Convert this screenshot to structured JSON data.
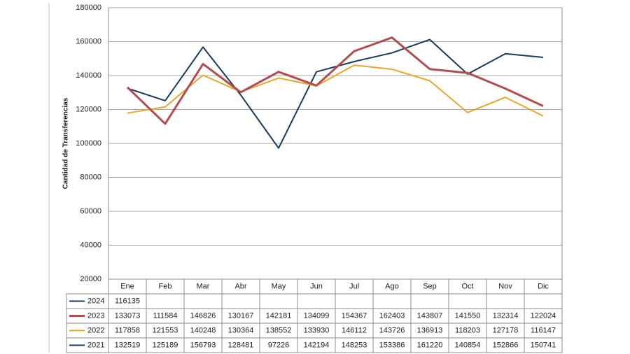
{
  "chart_data": {
    "type": "line",
    "y_label": "Cantidad de Transferencias",
    "categories": [
      "Ene",
      "Feb",
      "Mar",
      "Abr",
      "May",
      "Jun",
      "Jul",
      "Ago",
      "Sep",
      "Oct",
      "Nov",
      "Dic"
    ],
    "series": [
      {
        "name": "2024",
        "color": "#1f3f62",
        "values": [
          116135,
          null,
          null,
          null,
          null,
          null,
          null,
          null,
          null,
          null,
          null,
          null
        ]
      },
      {
        "name": "2023",
        "color": "#b24d4f",
        "values": [
          133073,
          111584,
          146826,
          130167,
          142181,
          134099,
          154367,
          162403,
          143807,
          141550,
          132314,
          122024
        ]
      },
      {
        "name": "2022",
        "color": "#e3a82f",
        "values": [
          117858,
          121553,
          140248,
          130364,
          138552,
          133930,
          146112,
          143726,
          136913,
          118203,
          127178,
          116147
        ]
      },
      {
        "name": "2021",
        "color": "#1a3a5c",
        "values": [
          132519,
          125189,
          156793,
          128481,
          97226,
          142194,
          148253,
          153386,
          161220,
          140854,
          152866,
          150741
        ]
      }
    ],
    "ylim": [
      20000,
      180000
    ],
    "yticks": [
      20000,
      40000,
      60000,
      80000,
      100000,
      120000,
      140000,
      160000,
      180000
    ],
    "grid": true
  }
}
